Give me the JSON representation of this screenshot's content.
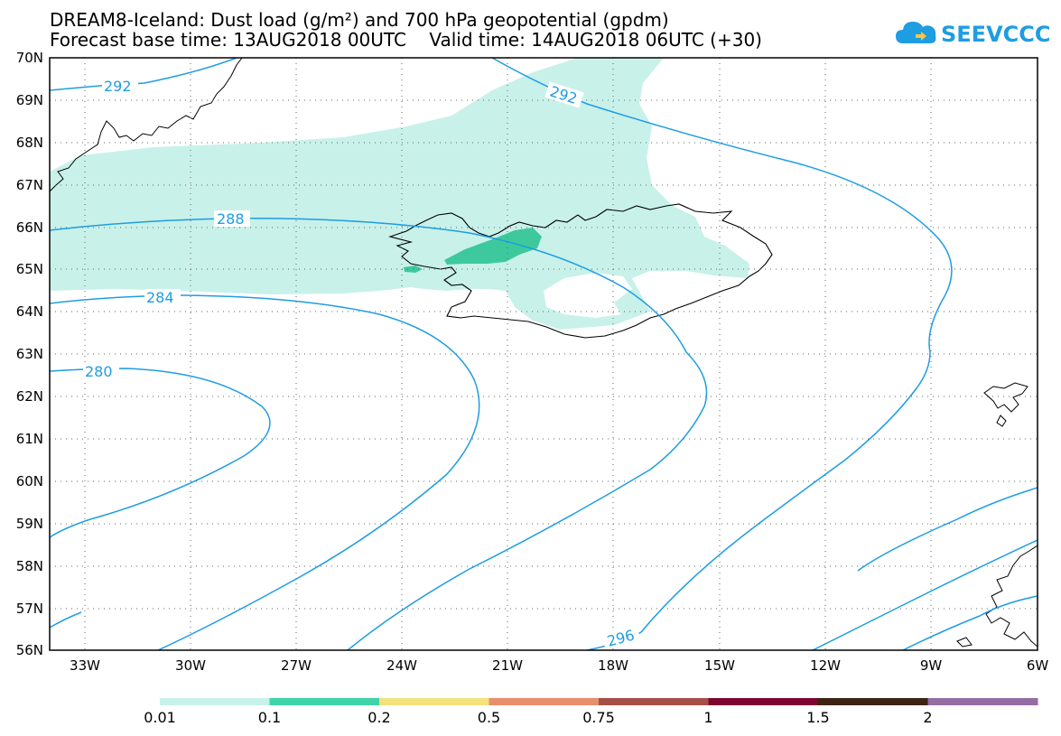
{
  "header": {
    "title_line1": "DREAM8-Iceland: Dust load (g/m²) and 700 hPa geopotential (gpdm)",
    "title_line2": "Forecast base time: 13AUG2018 00UTC    Valid time: 14AUG2018 06UTC (+30)"
  },
  "logo": {
    "text": "SEEVCCC",
    "color": "#1e9de3",
    "icon": "cloud-icon"
  },
  "map": {
    "lat_labels": [
      "70N",
      "69N",
      "68N",
      "67N",
      "66N",
      "65N",
      "64N",
      "63N",
      "62N",
      "61N",
      "60N",
      "59N",
      "58N",
      "57N",
      "56N"
    ],
    "lon_labels": [
      "33W",
      "30W",
      "27W",
      "24W",
      "21W",
      "18W",
      "15W",
      "12W",
      "9W",
      "6W"
    ],
    "contour_labels": [
      "292",
      "292",
      "288",
      "284",
      "280",
      "296"
    ],
    "contour_color": "#1e9de3",
    "dust_colors": {
      "low": "#c8f1ea",
      "mid": "#3ec99c"
    }
  },
  "colorbar": {
    "labels": [
      "0.01",
      "0.1",
      "0.2",
      "0.5",
      "0.75",
      "1",
      "1.5",
      "2"
    ],
    "colors": [
      "#c8f1ea",
      "#3fd4a9",
      "#f4e27a",
      "#e98f6b",
      "#a64f48",
      "#7e0530",
      "#3e2212",
      "#956ca4"
    ]
  }
}
